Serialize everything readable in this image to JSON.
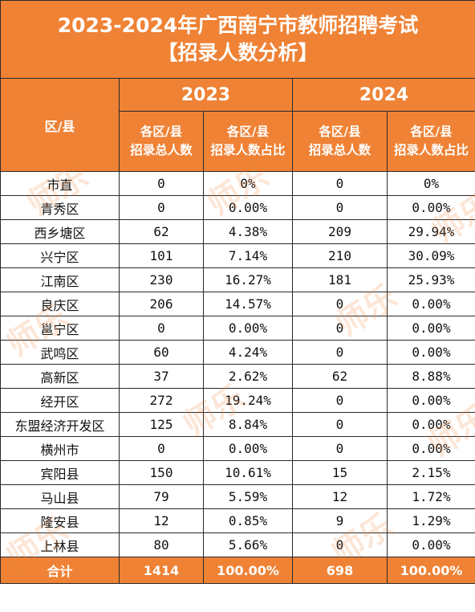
{
  "title": {
    "line1": "2023-2024年广西南宁市教师招聘考试",
    "line2": "【招录人数分析】"
  },
  "header": {
    "district_label": "区/县",
    "years": [
      "2023",
      "2024"
    ],
    "sub_count_line1": "各区/县",
    "sub_count_line2": "招录总人数",
    "sub_ratio_line1": "各区/县",
    "sub_ratio_line2": "招录人数占比"
  },
  "rows": [
    {
      "name": "市直",
      "c2023": "0",
      "r2023": "0%",
      "c2024": "0",
      "r2024": "0%"
    },
    {
      "name": "青秀区",
      "c2023": "0",
      "r2023": "0.00%",
      "c2024": "0",
      "r2024": "0.00%"
    },
    {
      "name": "西乡塘区",
      "c2023": "62",
      "r2023": "4.38%",
      "c2024": "209",
      "r2024": "29.94%"
    },
    {
      "name": "兴宁区",
      "c2023": "101",
      "r2023": "7.14%",
      "c2024": "210",
      "r2024": "30.09%"
    },
    {
      "name": "江南区",
      "c2023": "230",
      "r2023": "16.27%",
      "c2024": "181",
      "r2024": "25.93%"
    },
    {
      "name": "良庆区",
      "c2023": "206",
      "r2023": "14.57%",
      "c2024": "0",
      "r2024": "0.00%"
    },
    {
      "name": "邕宁区",
      "c2023": "0",
      "r2023": "0.00%",
      "c2024": "0",
      "r2024": "0.00%"
    },
    {
      "name": "武鸣区",
      "c2023": "60",
      "r2023": "4.24%",
      "c2024": "0",
      "r2024": "0.00%"
    },
    {
      "name": "高新区",
      "c2023": "37",
      "r2023": "2.62%",
      "c2024": "62",
      "r2024": "8.88%"
    },
    {
      "name": "经开区",
      "c2023": "272",
      "r2023": "19.24%",
      "c2024": "0",
      "r2024": "0.00%"
    },
    {
      "name": "东盟经济开发区",
      "c2023": "125",
      "r2023": "8.84%",
      "c2024": "0",
      "r2024": "0.00%"
    },
    {
      "name": "横州市",
      "c2023": "0",
      "r2023": "0.00%",
      "c2024": "0",
      "r2024": "0.00%"
    },
    {
      "name": "宾阳县",
      "c2023": "150",
      "r2023": "10.61%",
      "c2024": "15",
      "r2024": "2.15%"
    },
    {
      "name": "马山县",
      "c2023": "79",
      "r2023": "5.59%",
      "c2024": "12",
      "r2024": "1.72%"
    },
    {
      "name": "隆安县",
      "c2023": "12",
      "r2023": "0.85%",
      "c2024": "9",
      "r2024": "1.29%"
    },
    {
      "name": "上林县",
      "c2023": "80",
      "r2023": "5.66%",
      "c2024": "0",
      "r2024": "0.00%"
    }
  ],
  "total": {
    "name": "合计",
    "c2023": "1414",
    "r2023": "100.00%",
    "c2024": "698",
    "r2024": "100.00%"
  },
  "watermark_text": "师乐",
  "colors": {
    "header_bg": "#ef8235",
    "header_text": "#ffffff",
    "border": "#2a2a2a"
  }
}
